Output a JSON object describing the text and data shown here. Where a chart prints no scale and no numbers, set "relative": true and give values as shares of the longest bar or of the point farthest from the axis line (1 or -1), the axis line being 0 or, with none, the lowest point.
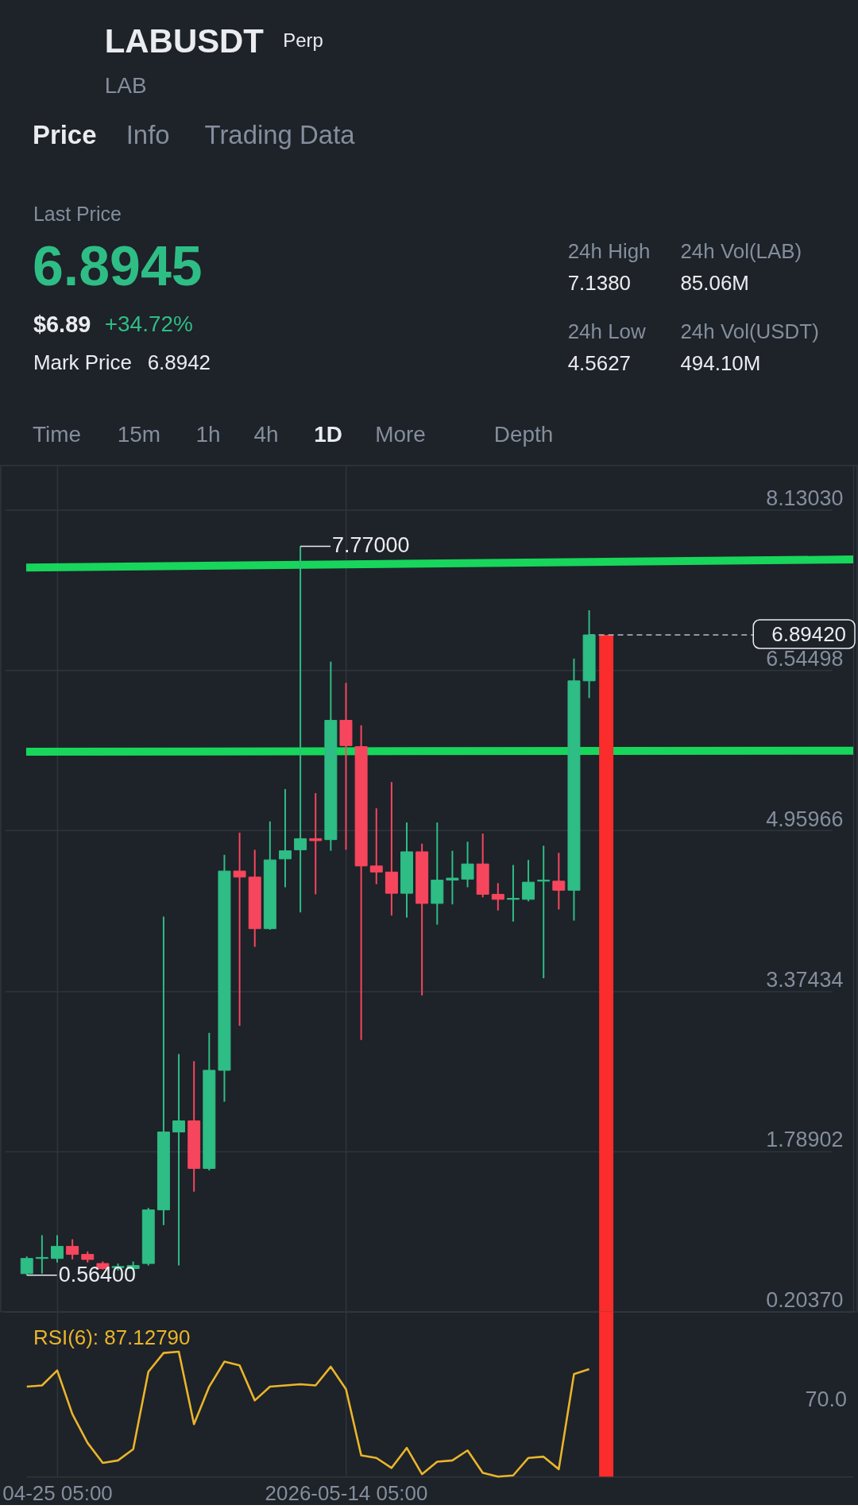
{
  "chart_data": [
    {
      "type": "other",
      "title": "LABUSDT",
      "subtitle": "LAB",
      "annotations": [
        "Perp",
        "Price",
        "Info",
        "Trading Data",
        "Last Price",
        "6.8945",
        "$6.89",
        "+34.72%",
        "Mark Price",
        "6.8942",
        "24h High",
        "7.1380",
        "24h Vol(LAB)",
        "85.06M",
        "24h Low",
        "4.5627",
        "24h Vol(USDT)",
        "494.10M",
        "Time",
        "15m",
        "1h",
        "4h",
        "1D",
        "More",
        "Depth"
      ]
    },
    {
      "type": "candlestick",
      "x": [
        "2026-04-23T05:00",
        "2026-04-24T05:00",
        "2026-04-25T05:00",
        "2026-04-26T05:00",
        "2026-04-27T05:00",
        "2026-04-28T05:00",
        "2026-04-29T05:00",
        "2026-04-30T05:00",
        "2026-05-01T05:00",
        "2026-05-02T05:00",
        "2026-05-03T05:00",
        "2026-05-04T05:00",
        "2026-05-05T05:00",
        "2026-05-06T05:00",
        "2026-05-07T05:00",
        "2026-05-08T05:00",
        "2026-05-09T05:00",
        "2026-05-10T05:00",
        "2026-05-11T05:00",
        "2026-05-12T05:00",
        "2026-05-13T05:00",
        "2026-05-14T05:00",
        "2026-05-15T05:00",
        "2026-05-16T05:00",
        "2026-05-17T05:00",
        "2026-05-18T05:00",
        "2026-05-19T05:00",
        "2026-05-20T05:00",
        "2026-05-21T05:00",
        "2026-05-22T05:00",
        "2026-05-23T05:00",
        "2026-05-24T05:00",
        "2026-05-25T05:00",
        "2026-05-26T05:00",
        "2026-05-27T05:00",
        "2026-05-28T05:00",
        "2026-05-29T05:00",
        "2026-05-30T05:00"
      ],
      "ohlc": [
        [
          0.58,
          0.75,
          0.564,
          0.73
        ],
        [
          0.73,
          0.96,
          0.58,
          0.74
        ],
        [
          0.73,
          0.96,
          0.69,
          0.85
        ],
        [
          0.85,
          0.92,
          0.72,
          0.77
        ],
        [
          0.77,
          0.8,
          0.69,
          0.72
        ],
        [
          0.68,
          0.7,
          0.62,
          0.63
        ],
        [
          0.64,
          0.68,
          0.61,
          0.65
        ],
        [
          0.63,
          0.7,
          0.62,
          0.66
        ],
        [
          0.68,
          1.23,
          0.66,
          1.21
        ],
        [
          1.21,
          4.11,
          1.06,
          1.98
        ],
        [
          1.98,
          2.75,
          0.66,
          2.09
        ],
        [
          2.09,
          2.68,
          1.39,
          1.62
        ],
        [
          1.62,
          2.96,
          1.6,
          2.59
        ],
        [
          2.59,
          4.72,
          2.28,
          4.56
        ],
        [
          4.56,
          4.94,
          3.03,
          4.5
        ],
        [
          4.5,
          4.77,
          3.81,
          3.99
        ],
        [
          3.99,
          5.05,
          3.98,
          4.67
        ],
        [
          4.68,
          5.37,
          4.4,
          4.76
        ],
        [
          4.77,
          7.77,
          4.15,
          4.88
        ],
        [
          4.88,
          5.33,
          4.33,
          4.86
        ],
        [
          4.87,
          6.63,
          4.76,
          6.05
        ],
        [
          6.05,
          6.42,
          4.77,
          5.8
        ],
        [
          5.79,
          6.0,
          2.89,
          4.61
        ],
        [
          4.61,
          5.18,
          4.43,
          4.55
        ],
        [
          4.55,
          5.44,
          4.12,
          4.34
        ],
        [
          4.34,
          5.04,
          4.1,
          4.75
        ],
        [
          4.75,
          4.83,
          3.33,
          4.24
        ],
        [
          4.24,
          5.04,
          4.03,
          4.47
        ],
        [
          4.47,
          4.76,
          4.23,
          4.49
        ],
        [
          4.48,
          4.85,
          4.4,
          4.63
        ],
        [
          4.63,
          4.93,
          4.3,
          4.33
        ],
        [
          4.33,
          4.44,
          4.17,
          4.28
        ],
        [
          4.28,
          4.62,
          4.06,
          4.29
        ],
        [
          4.28,
          4.67,
          4.26,
          4.45
        ],
        [
          4.46,
          4.81,
          3.5,
          4.47
        ],
        [
          4.46,
          4.74,
          4.18,
          4.37
        ],
        [
          4.37,
          6.66,
          4.07,
          6.44
        ],
        [
          6.44,
          7.138,
          6.27,
          6.8942
        ]
      ],
      "colors": [
        "#2ebd85",
        "#2ebd85",
        "#2ebd85",
        "#f6465d",
        "#f6465d",
        "#f6465d",
        "#2ebd85",
        "#2ebd85",
        "#2ebd85",
        "#2ebd85",
        "#2ebd85",
        "#f6465d",
        "#2ebd85",
        "#2ebd85",
        "#f6465d",
        "#f6465d",
        "#2ebd85",
        "#2ebd85",
        "#2ebd85",
        "#f6465d",
        "#2ebd85",
        "#f6465d",
        "#f6465d",
        "#f6465d",
        "#f6465d",
        "#2ebd85",
        "#f6465d",
        "#2ebd85",
        "#2ebd85",
        "#2ebd85",
        "#f6465d",
        "#f6465d",
        "#2ebd85",
        "#2ebd85",
        "#2ebd85",
        "#f6465d",
        "#2ebd85",
        "#2ebd85"
      ],
      "series": [
        {
          "type": "line",
          "color": "#17d65b",
          "x": [
            "2026-04-23T04:00",
            "2026-06-16T14:00"
          ],
          "values": [
            7.56,
            7.64
          ]
        },
        {
          "type": "line",
          "color": "#17d65b",
          "x": [
            "2026-04-23T04:00",
            "2026-06-16T14:00"
          ],
          "values": [
            5.74,
            5.75
          ]
        },
        {
          "type": "line",
          "color": "#fb2c2c",
          "x": [
            "2026-05-31T08:00",
            "2026-05-31T08:00"
          ],
          "values": [
            6.8942,
            0.2037
          ]
        }
      ],
      "xlim": [
        "2026-04-23T04:00",
        "2026-06-16T14:00"
      ],
      "xticks": [
        {
          "value": "2026-04-25T05:00",
          "label": null
        },
        {
          "value": "2026-05-14T05:00",
          "label": null
        }
      ],
      "ylim": [
        0.2037,
        8.57
      ],
      "yticks": [
        {
          "value": 8.1303,
          "label": "8.13030"
        },
        6.54498,
        4.95966,
        3.37434,
        1.78902,
        {
          "value": 0.2037,
          "label": "0.20370"
        }
      ],
      "grid": true,
      "tick_labels": "y",
      "ref_lines": [
        {
          "axis": "y",
          "value": 6.8942,
          "label": "6.89420",
          "line_style": "dashed",
          "color": "#b7bdc6"
        }
      ],
      "annotations": [
        {
          "text": "7.77000",
          "x": "2026-05-11T05:00",
          "y": 7.77
        },
        {
          "text": "0.56400",
          "x": "2026-04-23T05:00",
          "y": 0.564
        }
      ]
    },
    {
      "type": "line",
      "relative": true,
      "x": [
        "2026-04-23T05:00",
        "2026-04-24T05:00",
        "2026-04-25T05:00",
        "2026-04-26T05:00",
        "2026-04-27T05:00",
        "2026-04-28T05:00",
        "2026-04-29T05:00",
        "2026-04-30T05:00",
        "2026-05-01T05:00",
        "2026-05-02T05:00",
        "2026-05-03T05:00",
        "2026-05-04T05:00",
        "2026-05-05T05:00",
        "2026-05-06T05:00",
        "2026-05-07T05:00",
        "2026-05-08T05:00",
        "2026-05-09T05:00",
        "2026-05-10T05:00",
        "2026-05-11T05:00",
        "2026-05-12T05:00",
        "2026-05-13T05:00",
        "2026-05-14T05:00",
        "2026-05-15T05:00",
        "2026-05-16T05:00",
        "2026-05-17T05:00",
        "2026-05-18T05:00",
        "2026-05-19T05:00",
        "2026-05-20T05:00",
        "2026-05-21T05:00",
        "2026-05-22T05:00",
        "2026-05-23T05:00",
        "2026-05-24T05:00",
        "2026-05-25T05:00",
        "2026-05-26T05:00",
        "2026-05-27T05:00",
        "2026-05-28T05:00",
        "2026-05-29T05:00",
        "2026-05-30T05:00"
      ],
      "series": [
        {
          "name": "RSI(6): 87.12790",
          "color": "#e9b52a",
          "values": [
            0.72,
            0.73,
            0.85,
            0.5,
            0.27,
            0.11,
            0.13,
            0.22,
            0.84,
            0.99,
            1.0,
            0.42,
            0.72,
            0.92,
            0.89,
            0.61,
            0.72,
            0.73,
            0.74,
            0.73,
            0.88,
            0.7,
            0.17,
            0.15,
            0.07,
            0.23,
            0.02,
            0.12,
            0.13,
            0.21,
            0.03,
            0.0,
            0.01,
            0.15,
            0.16,
            0.06,
            0.82,
            0.86
          ]
        }
      ],
      "xlim": [
        "2026-04-23T04:00",
        "2026-06-16T14:00"
      ],
      "xticks": [
        {
          "value": "2026-04-25T05:00",
          "label": "04-25 05:00"
        },
        {
          "value": "2026-05-14T05:00",
          "label": "2026-05-14 05:00"
        }
      ],
      "grid": "x",
      "legend": "top left",
      "ref_lines": [
        {
          "axis": "x",
          "value": "2026-05-31T08:00",
          "color": "#fb2c2c"
        }
      ],
      "annotations": [
        "70.0"
      ]
    }
  ]
}
